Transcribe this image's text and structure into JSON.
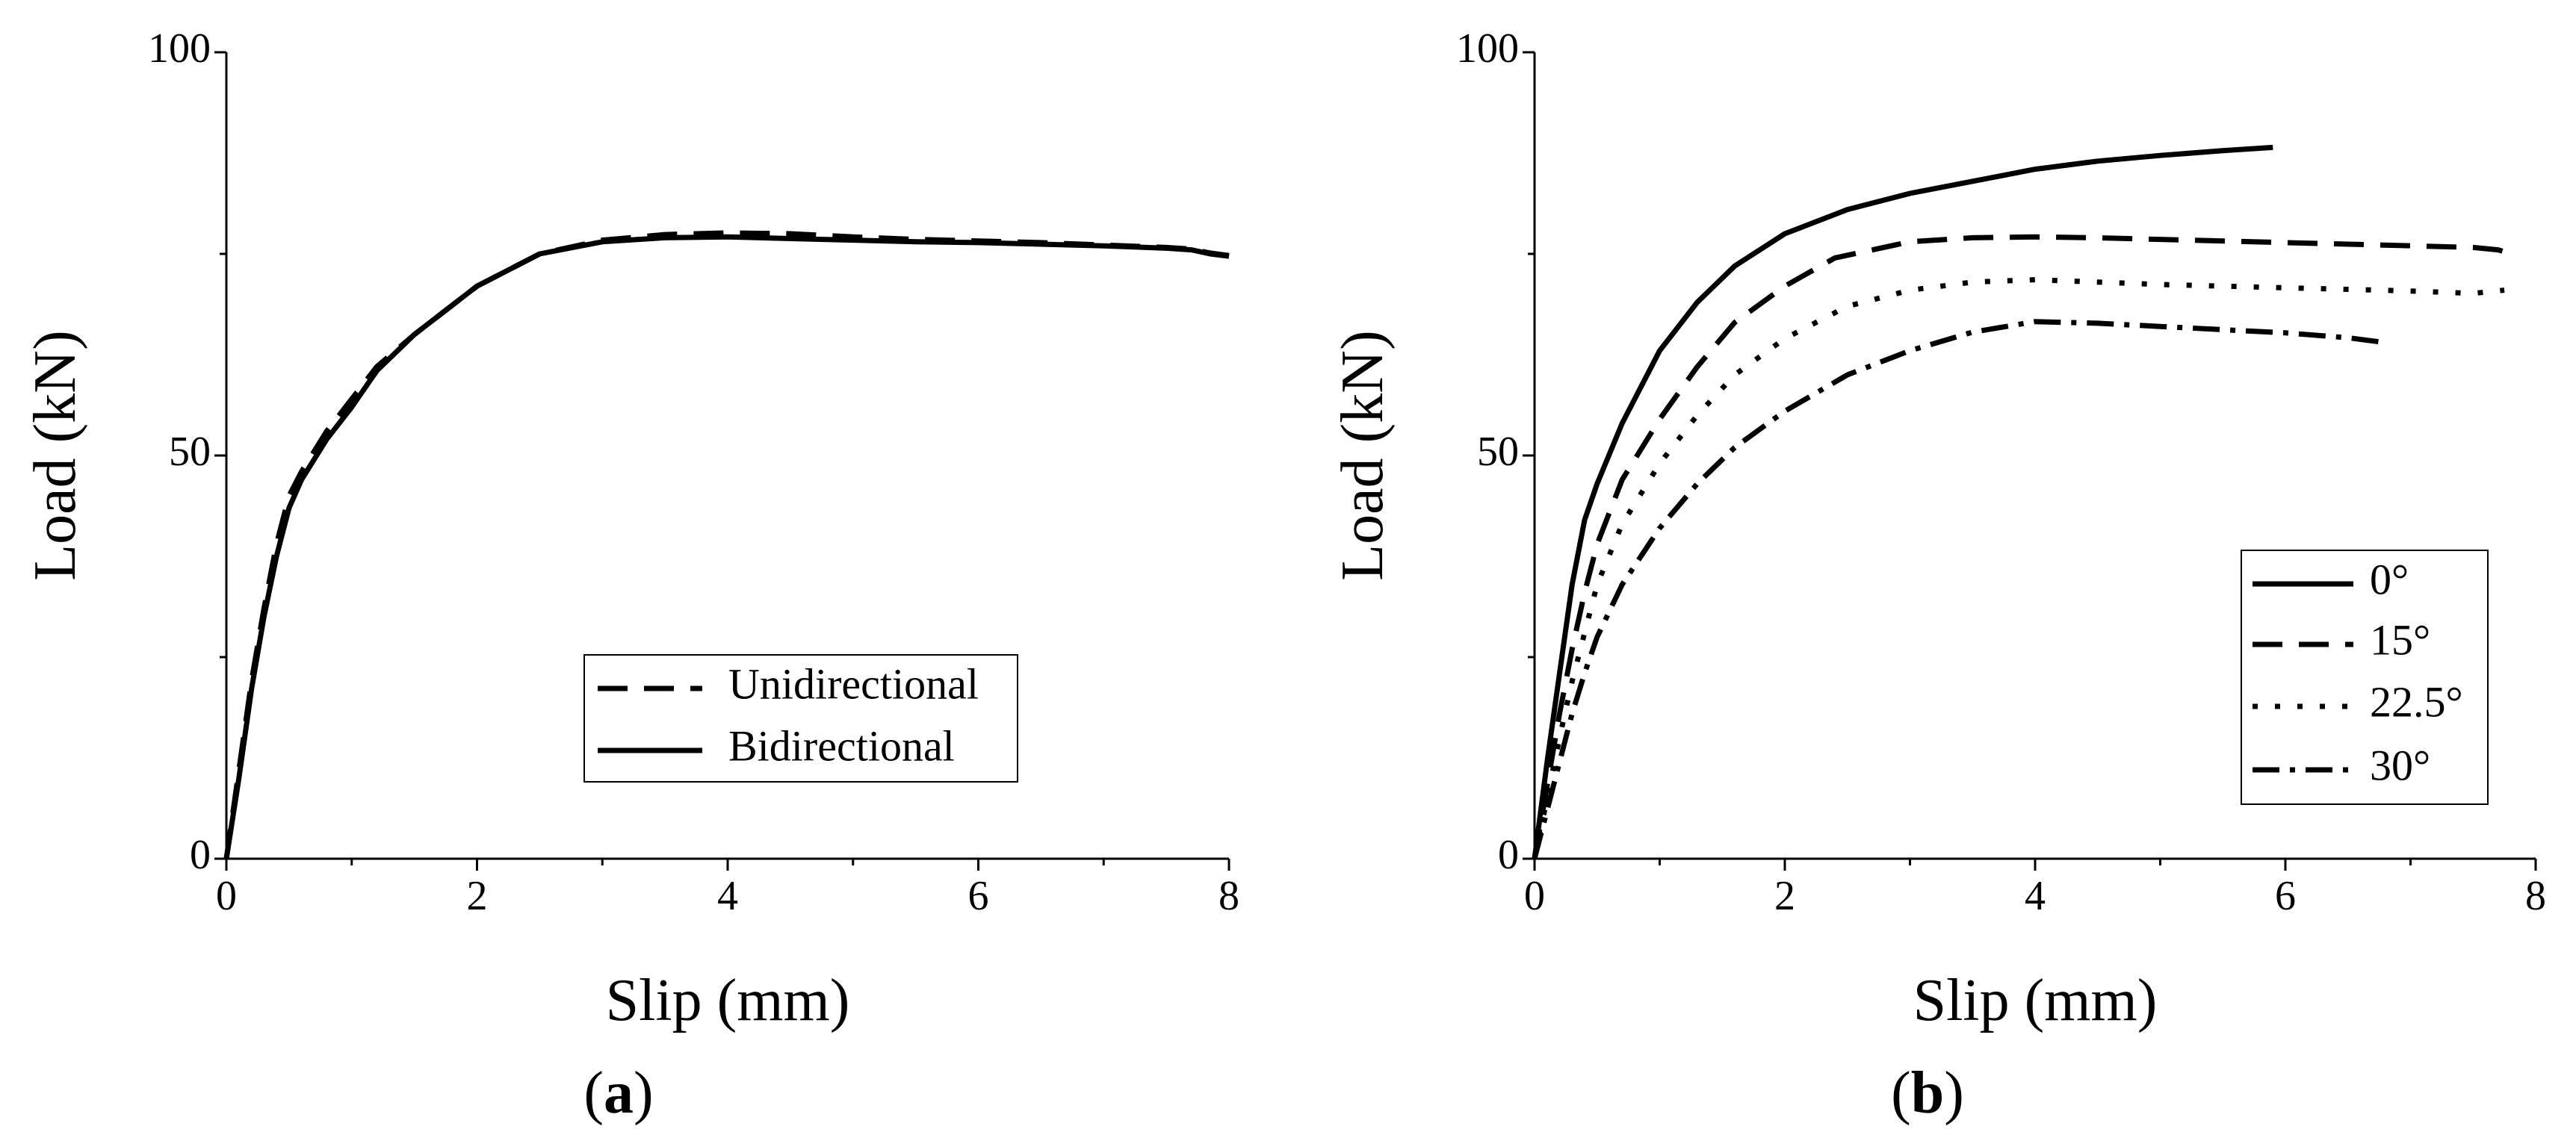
{
  "figure": {
    "panel_labels": [
      {
        "open": "(",
        "letter": "a",
        "close": ")"
      },
      {
        "open": "(",
        "letter": "b",
        "close": ")"
      }
    ]
  },
  "colors": {
    "line": "#000000",
    "background": "#ffffff"
  },
  "chart_data": [
    {
      "type": "line",
      "panel": "a",
      "title": "",
      "xlabel": "Slip (mm)",
      "ylabel": "Load (kN)",
      "xlim": [
        0,
        8
      ],
      "ylim": [
        0,
        100
      ],
      "xticks": [
        0,
        2,
        4,
        6,
        8
      ],
      "xtick_labels": [
        "0",
        "2",
        "4",
        "6",
        "8"
      ],
      "yticks": [
        0,
        50,
        100
      ],
      "ytick_labels": [
        "0",
        "50",
        "100"
      ],
      "grid": false,
      "legend_position": "lower-right",
      "series": [
        {
          "name": "Unidirectional",
          "style": "dashed",
          "x": [
            0,
            0.1,
            0.2,
            0.3,
            0.4,
            0.5,
            0.6,
            0.8,
            1.0,
            1.2,
            1.5,
            2.0,
            2.5,
            3.0,
            3.5,
            4.0,
            4.5,
            5.0,
            5.5,
            6.0,
            6.5,
            7.0,
            7.5,
            7.7,
            7.85,
            8.0
          ],
          "y": [
            0,
            11,
            22,
            31,
            39,
            45,
            48,
            53,
            57,
            61,
            65,
            71,
            75,
            76.7,
            77.4,
            77.6,
            77.5,
            77.1,
            76.8,
            76.6,
            76.4,
            76.1,
            75.8,
            75.6,
            75.1,
            74.8
          ]
        },
        {
          "name": "Bidirectional",
          "style": "solid",
          "x": [
            0,
            0.1,
            0.2,
            0.3,
            0.4,
            0.5,
            0.6,
            0.8,
            1.0,
            1.2,
            1.5,
            2.0,
            2.5,
            3.0,
            3.5,
            4.0,
            4.5,
            5.0,
            5.5,
            6.0,
            6.5,
            7.0,
            7.5,
            7.7,
            7.85,
            8.0
          ],
          "y": [
            0,
            10,
            21,
            30,
            37.5,
            43.5,
            47,
            52,
            56,
            60.5,
            65,
            71,
            75,
            76.5,
            77,
            77.1,
            76.9,
            76.7,
            76.5,
            76.4,
            76.2,
            76.0,
            75.7,
            75.5,
            75.0,
            74.7
          ]
        }
      ]
    },
    {
      "type": "line",
      "panel": "b",
      "title": "",
      "xlabel": "Slip (mm)",
      "ylabel": "Load (kN)",
      "xlim": [
        0,
        8
      ],
      "ylim": [
        0,
        100
      ],
      "xticks": [
        0,
        2,
        4,
        6,
        8
      ],
      "xtick_labels": [
        "0",
        "2",
        "4",
        "6",
        "8"
      ],
      "yticks": [
        0,
        50,
        100
      ],
      "ytick_labels": [
        "0",
        "50",
        "100"
      ],
      "grid": false,
      "legend_position": "lower-right",
      "series": [
        {
          "name": "0°",
          "style": "solid",
          "x": [
            0,
            0.1,
            0.2,
            0.3,
            0.4,
            0.5,
            0.7,
            1.0,
            1.3,
            1.6,
            2.0,
            2.5,
            3.0,
            3.5,
            4.0,
            4.5,
            5.0,
            5.5,
            5.9
          ],
          "y": [
            0,
            12,
            23,
            34,
            42,
            46.5,
            54,
            63,
            69,
            73.5,
            77.5,
            80.5,
            82.5,
            84,
            85.5,
            86.5,
            87.2,
            87.8,
            88.2
          ]
        },
        {
          "name": "15°",
          "style": "dashed",
          "x": [
            0,
            0.1,
            0.2,
            0.3,
            0.4,
            0.5,
            0.7,
            1.0,
            1.3,
            1.6,
            2.0,
            2.4,
            3.0,
            3.5,
            4.0,
            4.5,
            5.0,
            5.5,
            6.0,
            6.5,
            7.0,
            7.5,
            7.7,
            7.85
          ],
          "y": [
            0,
            9,
            18,
            26,
            33,
            39,
            47,
            54.5,
            61,
            66.5,
            71,
            74.5,
            76.5,
            77,
            77.1,
            77,
            76.8,
            76.6,
            76.4,
            76.2,
            76.0,
            75.8,
            75.5,
            74.8
          ]
        },
        {
          "name": "22.5°",
          "style": "dotted",
          "x": [
            0,
            0.1,
            0.2,
            0.3,
            0.4,
            0.5,
            0.7,
            1.0,
            1.3,
            1.6,
            2.0,
            2.5,
            3.0,
            3.5,
            4.0,
            4.5,
            5.0,
            5.5,
            6.0,
            6.5,
            7.0,
            7.5,
            7.75
          ],
          "y": [
            0,
            7.5,
            15,
            22,
            28,
            34,
            41.5,
            49,
            55,
            60,
            64.5,
            68.5,
            70.5,
            71.5,
            71.8,
            71.5,
            71.2,
            71,
            70.8,
            70.6,
            70.4,
            70.1,
            70.5
          ]
        },
        {
          "name": "30°",
          "style": "dash-dot",
          "x": [
            0,
            0.1,
            0.2,
            0.3,
            0.4,
            0.5,
            0.7,
            1.0,
            1.3,
            1.6,
            2.0,
            2.5,
            3.0,
            3.5,
            4.0,
            4.5,
            5.0,
            5.5,
            6.0,
            6.5,
            6.8
          ],
          "y": [
            0,
            6,
            12,
            18,
            23,
            27.5,
            34,
            41,
            46.5,
            51,
            55.5,
            60,
            63,
            65.3,
            66.6,
            66.4,
            66,
            65.6,
            65.2,
            64.6,
            64.0
          ]
        }
      ]
    }
  ]
}
